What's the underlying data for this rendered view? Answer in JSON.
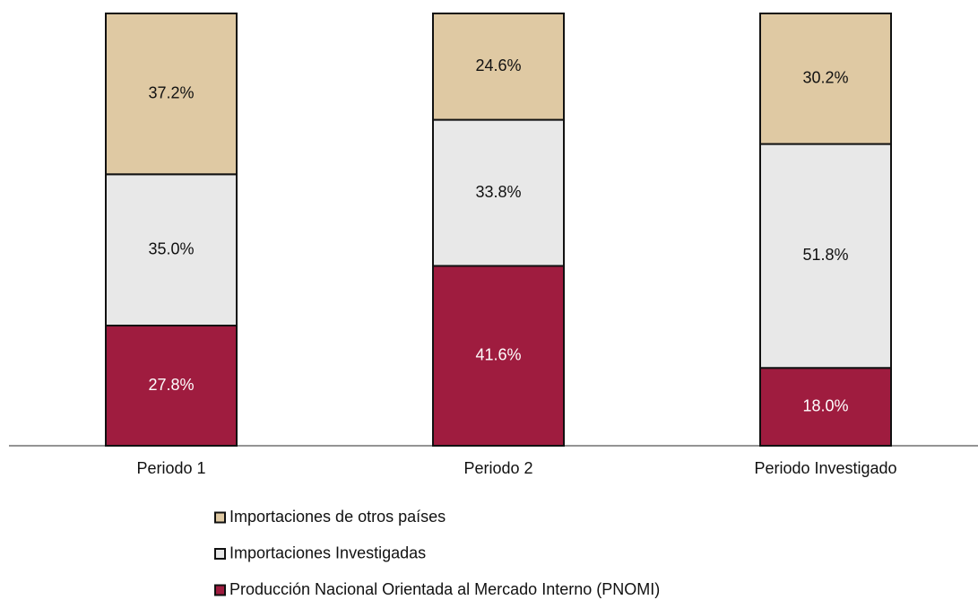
{
  "chart_data": {
    "type": "stacked_bar",
    "categories": [
      "Periodo 1",
      "Periodo 2",
      "Periodo Investigado"
    ],
    "series": [
      {
        "name": "Producción Nacional Orientada al Mercado Interno (PNOMI)",
        "color": "#9f1c3f",
        "label_color": "#ffffff",
        "values": [
          27.8,
          41.6,
          18.0
        ],
        "value_labels": [
          "27.8%",
          "41.6%",
          "18.0%"
        ]
      },
      {
        "name": "Importaciones Investigadas",
        "color": "#e8e8e8",
        "label_color": "#111111",
        "values": [
          35.0,
          33.8,
          51.8
        ],
        "value_labels": [
          "35.0%",
          "33.8%",
          "51.8%"
        ]
      },
      {
        "name": "Importaciones de otros países",
        "color": "#dfc9a3",
        "label_color": "#111111",
        "values": [
          37.2,
          24.6,
          30.2
        ],
        "value_labels": [
          "37.2%",
          "24.6%",
          "30.2%"
        ]
      }
    ]
  }
}
